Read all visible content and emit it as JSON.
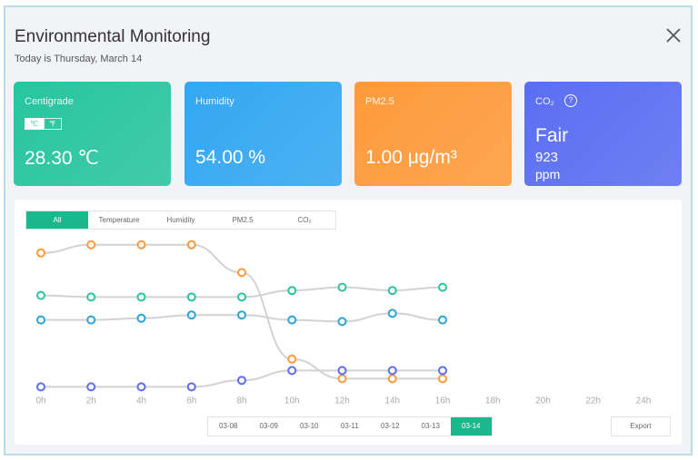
{
  "header": {
    "title": "Environmental Monitoring",
    "subtitle": "Today is Thursday, March 14"
  },
  "cards": [
    {
      "label": "Centigrade",
      "units": [
        "℃",
        "℉"
      ],
      "value": "28.30 ℃",
      "color": "#27c59f"
    },
    {
      "label": "Humidity",
      "value": "54.00 %",
      "color": "#33a7f2"
    },
    {
      "label": "PM2.5",
      "value": "1.00 μg/m³",
      "color": "#ff9a3a"
    },
    {
      "label": "CO₂",
      "status": "Fair",
      "value": "923",
      "unit": "ppm",
      "color": "#5a6ef2"
    }
  ],
  "tabs": [
    "All",
    "Temperature",
    "Humidity",
    "PM2.5",
    "CO₂"
  ],
  "active_tab": 0,
  "chart_data": {
    "type": "line",
    "x": [
      0,
      2,
      4,
      6,
      8,
      10,
      12,
      14,
      16
    ],
    "xlim": [
      0,
      24
    ],
    "xticks": [
      {
        "value": 0,
        "label": "0h"
      },
      {
        "value": 2,
        "label": "2h"
      },
      {
        "value": 4,
        "label": "4h"
      },
      {
        "value": 6,
        "label": "6h"
      },
      {
        "value": 8,
        "label": "8h"
      },
      {
        "value": 10,
        "label": "10h"
      },
      {
        "value": 12,
        "label": "12h"
      },
      {
        "value": 14,
        "label": "14h"
      },
      {
        "value": 16,
        "label": "16h"
      },
      {
        "value": 18,
        "label": "18h"
      },
      {
        "value": 20,
        "label": "20h"
      },
      {
        "value": 22,
        "label": "22h"
      },
      {
        "value": 24,
        "label": "24h"
      }
    ],
    "ylim": [
      0,
      100
    ],
    "series": [
      {
        "color": "#ff9a3a",
        "values": [
          84,
          89,
          89,
          89,
          72,
          19,
          7,
          7,
          7
        ]
      },
      {
        "color": "#27c59f",
        "values": [
          58,
          57,
          57,
          57,
          57,
          61,
          63,
          61,
          63
        ]
      },
      {
        "color": "#2aa3d8",
        "values": [
          43,
          43,
          44,
          46,
          46,
          43,
          42,
          47,
          43
        ]
      },
      {
        "color": "#5a6ef2",
        "values": [
          2,
          2,
          2,
          2,
          6,
          12,
          12,
          12,
          12
        ]
      }
    ]
  },
  "dates": [
    "03-08",
    "03-09",
    "03-10",
    "03-11",
    "03-12",
    "03-13",
    "03-14"
  ],
  "active_date": 6,
  "export": "Export"
}
